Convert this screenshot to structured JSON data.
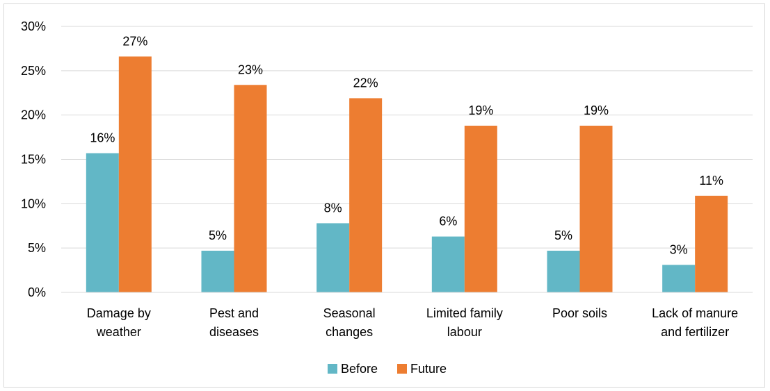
{
  "chart_data": {
    "type": "bar",
    "categories": [
      [
        "Damage by",
        "weather"
      ],
      [
        "Pest and",
        "diseases"
      ],
      [
        "Seasonal",
        "changes"
      ],
      [
        "Limited family",
        "labour"
      ],
      [
        "Poor soils"
      ],
      [
        "Lack of manure",
        "and fertilizer"
      ]
    ],
    "series": [
      {
        "name": "Before",
        "color": "#62b7c6",
        "values": [
          15.7,
          4.7,
          7.8,
          6.3,
          4.7,
          3.1
        ],
        "labels": [
          "16%",
          "5%",
          "8%",
          "6%",
          "5%",
          "3%"
        ]
      },
      {
        "name": "Future",
        "color": "#ed7d31",
        "values": [
          26.6,
          23.4,
          21.9,
          18.8,
          18.8,
          10.9
        ],
        "labels": [
          "27%",
          "23%",
          "22%",
          "19%",
          "19%",
          "11%"
        ]
      }
    ],
    "ylim": [
      0,
      30
    ],
    "yticks": [
      0,
      5,
      10,
      15,
      20,
      25,
      30
    ],
    "ytick_labels": [
      "0%",
      "5%",
      "10%",
      "15%",
      "20%",
      "25%",
      "30%"
    ],
    "grid": true,
    "legend": "bottom",
    "title": "",
    "xlabel": "",
    "ylabel": ""
  }
}
